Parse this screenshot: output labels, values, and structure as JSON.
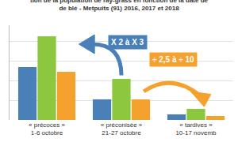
{
  "chart_data": {
    "type": "bar",
    "title": "tion de la population de ray-grass en fonction de la date de\nde blé - Metpuits (91) 2016, 2017 et 2018",
    "categories": [
      "« précoces »\n1-6 octobre",
      "« préconisée »\n21-27 octobre",
      "« tardives »\n10-17 novemb"
    ],
    "series": [
      {
        "color": "#4a80b8",
        "values": [
          67,
          26,
          7
        ]
      },
      {
        "color": "#8dc63f",
        "values": [
          106,
          52,
          14
        ]
      },
      {
        "color": "#f4a22d",
        "values": [
          61,
          26,
          5
        ]
      }
    ],
    "annotations": [
      "X 2 à X 3",
      "÷ 2,5 à ÷ 10"
    ],
    "ylim": [
      0,
      120
    ],
    "yticks": [
      0,
      25,
      50,
      75,
      100
    ],
    "grid": true,
    "tick_labels": "x"
  }
}
